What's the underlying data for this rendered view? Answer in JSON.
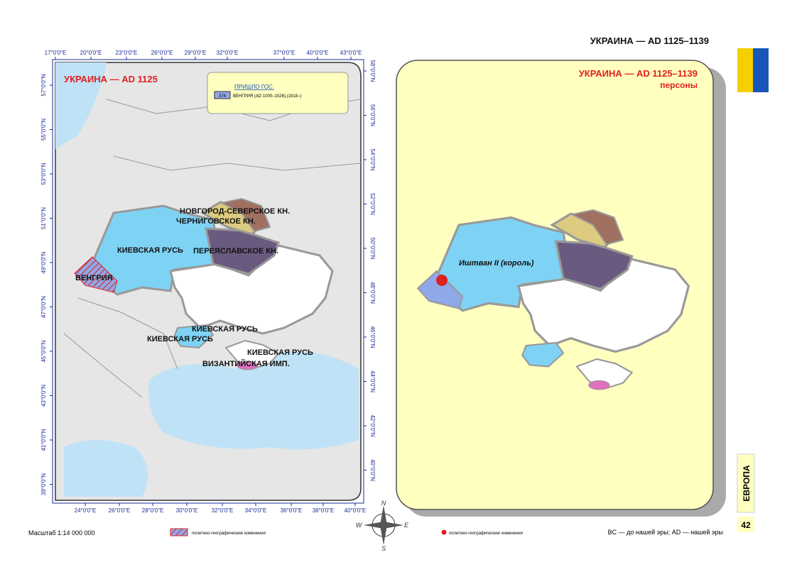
{
  "header": {
    "title": "УКРАИНА — AD 1125–1139"
  },
  "left_map": {
    "title": "УКРАИНА — AD 1125",
    "legend": {
      "heading": "ПРИШЛО ГОС.",
      "code": "374",
      "entry": "ВЕНГРИЯ (AD 1000–1526),(1918–)"
    },
    "top_lon": [
      "17°0'0\"E",
      "20°0'0\"E",
      "23°0'0\"E",
      "26°0'0\"E",
      "29°0'0\"E",
      "32°0'0\"E",
      "37°0'0\"E",
      "40°0'0\"E",
      "43°0'0\"E"
    ],
    "bottom_lon": [
      "24°0'0\"E",
      "26°0'0\"E",
      "28°0'0\"E",
      "30°0'0\"E",
      "32°0'0\"E",
      "34°0'0\"E",
      "36°0'0\"E",
      "38°0'0\"E",
      "40°0'0\"E"
    ],
    "left_lat": [
      "57°0'0\"N",
      "55°0'0\"N",
      "53°0'0\"N",
      "51°0'0\"N",
      "49°0'0\"N",
      "47°0'0\"N",
      "45°0'0\"N",
      "43°0'0\"N",
      "41°0'0\"N",
      "39°0'0\"N"
    ],
    "right_lat": [
      "58°0'0\"N",
      "56°0'0\"N",
      "54°0'0\"N",
      "52°0'0\"N",
      "50°0'0\"N",
      "48°0'0\"N",
      "46°0'0\"N",
      "44°0'0\"N",
      "42°0'0\"N",
      "40°0'0\"N"
    ],
    "regions": [
      "НОВГОРОД-СЕВЕРСКОЕ КН.",
      "ЧЕРНИГОВСКОЕ КН.",
      "КИЕВСКАЯ РУСЬ",
      "ПЕРЕЯСЛАВСКОЕ КН.",
      "ВЕНГРИЯ",
      "КИЕВСКАЯ РУСЬ",
      "КИЕВСКАЯ РУСЬ",
      "КИЕВСКАЯ РУСЬ",
      "ВИЗАНТИЙСКАЯ ИМП."
    ]
  },
  "right_map": {
    "title": "УКРАИНА — AD 1125–1139",
    "subtitle": "персоны",
    "person": "Иштван II (король)"
  },
  "compass": [
    "N",
    "W",
    "E",
    "S"
  ],
  "footer": {
    "scale": "Масштаб 1:14 000 000",
    "legend_hatch": "политико-географические изменения",
    "legend_dot": "политико-географические изменения",
    "era_note": "BC — до нашей эры; AD — нашей эры",
    "section": "ЕВРОПА",
    "page": "42"
  }
}
